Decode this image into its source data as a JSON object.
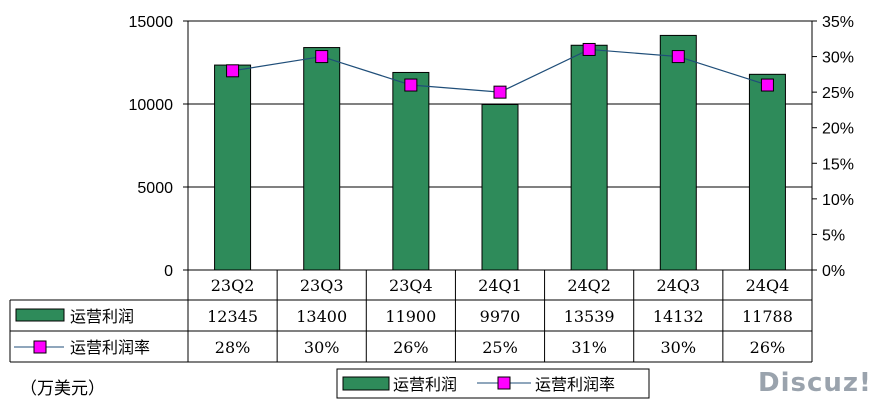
{
  "chart_data": {
    "type": "bar",
    "categories": [
      "23Q2",
      "23Q3",
      "23Q4",
      "24Q1",
      "24Q2",
      "24Q3",
      "24Q4"
    ],
    "series": [
      {
        "name": "运营利润",
        "type": "bar",
        "axis": "left",
        "values": [
          12345,
          13400,
          11900,
          9970,
          13539,
          14132,
          11788
        ],
        "color": "#2e8b5a"
      },
      {
        "name": "运营利润率",
        "type": "line",
        "axis": "right",
        "values": [
          28,
          30,
          26,
          25,
          31,
          30,
          26
        ],
        "color": "#ff00ff"
      }
    ],
    "table_rows": [
      {
        "label": "运营利润",
        "values": [
          "12345",
          "13400",
          "11900",
          "9970",
          "13539",
          "14132",
          "11788"
        ]
      },
      {
        "label": "运营利润率",
        "values": [
          "28%",
          "30%",
          "26%",
          "25%",
          "31%",
          "30%",
          "26%"
        ]
      }
    ],
    "left_axis": {
      "ylim": [
        0,
        15000
      ],
      "ticks": [
        "0",
        "5000",
        "10000",
        "15000"
      ]
    },
    "right_axis": {
      "ylim": [
        0,
        35
      ],
      "ticks": [
        "0%",
        "5%",
        "10%",
        "15%",
        "20%",
        "25%",
        "30%",
        "35%"
      ]
    },
    "grid": true,
    "legend_placement": "bottom-center",
    "line_color": "#1f4e79"
  },
  "unit_label": "（万美元）",
  "watermark": "Discuz!"
}
